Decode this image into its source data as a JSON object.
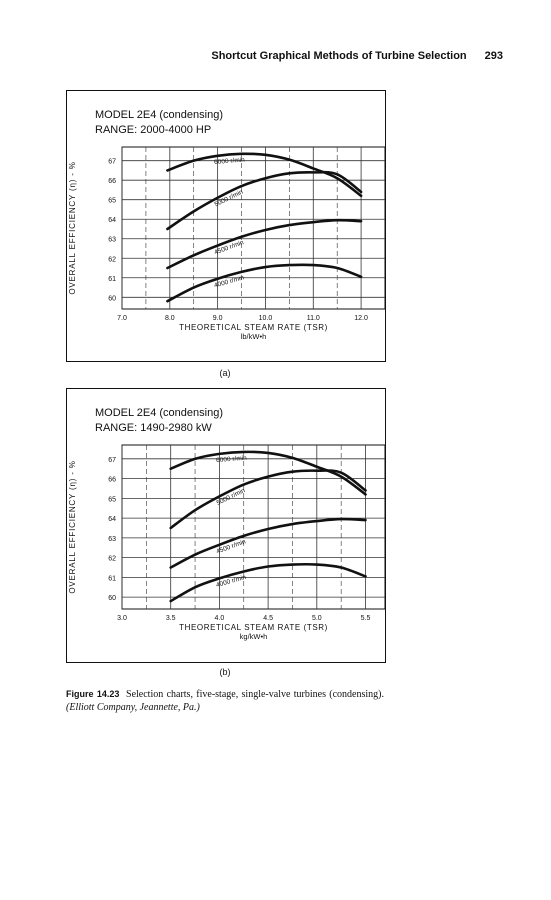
{
  "running_head": {
    "title": "Shortcut Graphical Methods of Turbine Selection",
    "page_number": "293"
  },
  "chart_data": [
    {
      "type": "line",
      "panel_label": "(a)",
      "title": "MODEL 2E4 (condensing)",
      "subtitle": "RANGE: 2000-4000 HP",
      "xlabel": "THEORETICAL STEAM RATE (TSR)",
      "xunit": "lb/kW•h",
      "ylabel": "OVERALL EFFICIENCY (η) - %",
      "xlim": [
        7.0,
        12.5
      ],
      "ylim": [
        59.4,
        67.7
      ],
      "xticks": [
        7.0,
        8.0,
        9.0,
        10.0,
        11.0,
        12.0
      ],
      "xtick_labels": [
        "7.0",
        "8.0",
        "9.0",
        "10.0",
        "11.0",
        "12.0"
      ],
      "yticks": [
        60,
        61,
        62,
        63,
        64,
        65,
        66,
        67
      ],
      "ytick_labels": [
        "60",
        "61",
        "62",
        "63",
        "64",
        "65",
        "66",
        "67"
      ],
      "grid": true,
      "series": [
        {
          "name": "6000 r/min",
          "x": [
            7.95,
            8.5,
            9.0,
            9.5,
            10.0,
            10.5,
            11.0,
            11.5,
            12.0
          ],
          "y": [
            66.5,
            67.0,
            67.25,
            67.35,
            67.3,
            67.05,
            66.6,
            66.1,
            65.2
          ]
        },
        {
          "name": "5000 r/min",
          "x": [
            7.95,
            8.5,
            9.0,
            9.5,
            10.0,
            10.5,
            11.0,
            11.5,
            12.0
          ],
          "y": [
            63.5,
            64.4,
            65.1,
            65.7,
            66.1,
            66.35,
            66.4,
            66.3,
            65.4
          ]
        },
        {
          "name": "4500 r/min",
          "x": [
            7.95,
            8.5,
            9.0,
            9.5,
            10.0,
            10.5,
            11.0,
            11.5,
            12.0
          ],
          "y": [
            61.5,
            62.15,
            62.65,
            63.1,
            63.45,
            63.7,
            63.85,
            63.95,
            63.9
          ]
        },
        {
          "name": "4000 r/min",
          "x": [
            7.95,
            8.5,
            9.0,
            9.5,
            10.0,
            10.5,
            11.0,
            11.5,
            12.0
          ],
          "y": [
            59.8,
            60.5,
            60.95,
            61.3,
            61.55,
            61.65,
            61.65,
            61.5,
            61.05
          ]
        }
      ]
    },
    {
      "type": "line",
      "panel_label": "(b)",
      "title": "MODEL 2E4 (condensing)",
      "subtitle": "RANGE: 1490-2980 kW",
      "xlabel": "THEORETICAL STEAM RATE (TSR)",
      "xunit": "kg/kW•h",
      "ylabel": "OVERALL EFFICIENCY (η) - %",
      "xlim": [
        3.0,
        5.7
      ],
      "ylim": [
        59.4,
        67.7
      ],
      "xticks": [
        3.0,
        3.5,
        4.0,
        4.5,
        5.0,
        5.5
      ],
      "xtick_labels": [
        "3.0",
        "3.5",
        "4.0",
        "4.5",
        "5.0",
        "5.5"
      ],
      "yticks": [
        60,
        61,
        62,
        63,
        64,
        65,
        66,
        67
      ],
      "ytick_labels": [
        "60",
        "61",
        "62",
        "63",
        "64",
        "65",
        "66",
        "67"
      ],
      "grid": true,
      "series": [
        {
          "name": "6000 r/min",
          "x": [
            3.5,
            3.75,
            4.0,
            4.25,
            4.5,
            4.75,
            5.0,
            5.25,
            5.5
          ],
          "y": [
            66.5,
            67.0,
            67.25,
            67.35,
            67.3,
            67.05,
            66.6,
            66.1,
            65.2
          ]
        },
        {
          "name": "5000 r/min",
          "x": [
            3.5,
            3.75,
            4.0,
            4.25,
            4.5,
            4.75,
            5.0,
            5.25,
            5.5
          ],
          "y": [
            63.5,
            64.4,
            65.1,
            65.7,
            66.1,
            66.35,
            66.4,
            66.3,
            65.4
          ]
        },
        {
          "name": "4500 r/min",
          "x": [
            3.5,
            3.75,
            4.0,
            4.25,
            4.5,
            4.75,
            5.0,
            5.25,
            5.5
          ],
          "y": [
            61.5,
            62.15,
            62.65,
            63.1,
            63.45,
            63.7,
            63.85,
            63.95,
            63.9
          ]
        },
        {
          "name": "4000 r/min",
          "x": [
            3.5,
            3.75,
            4.0,
            4.25,
            4.5,
            4.75,
            5.0,
            5.25,
            5.5
          ],
          "y": [
            59.8,
            60.5,
            60.95,
            61.3,
            61.55,
            61.65,
            61.65,
            61.5,
            61.05
          ]
        }
      ]
    }
  ],
  "caption": {
    "figure_label": "Figure 14.23",
    "text": "Selection charts, five-stage, single-valve turbines (condensing).",
    "source": "(Elliott Company, Jeannette, Pa.)"
  },
  "colors": {
    "ink": "#111111",
    "grid": "#333333"
  }
}
